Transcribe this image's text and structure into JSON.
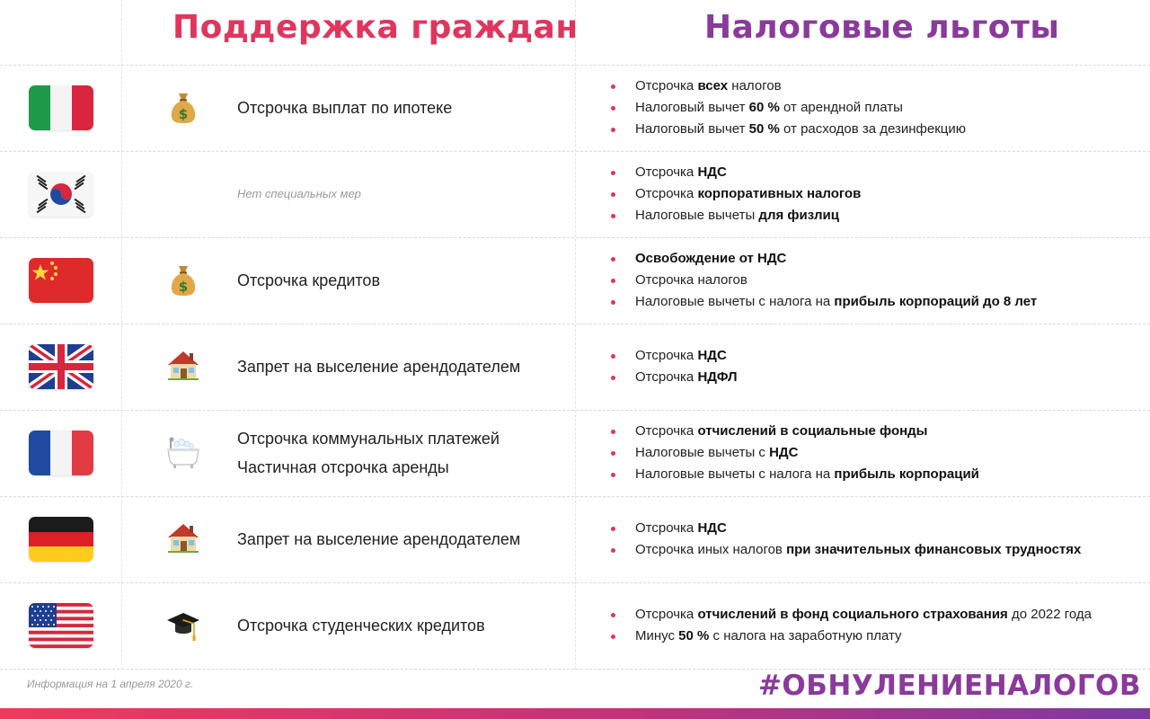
{
  "header": {
    "left_title": "Поддержка граждан",
    "right_title": "Налоговые льготы"
  },
  "rows": [
    {
      "country_flag": "italy-flag",
      "support_icon": "money-bag-icon",
      "support": [
        "Отсрочка выплат по ипотеке"
      ],
      "tax": [
        [
          {
            "t": "Отсрочка "
          },
          {
            "t": "всех",
            "b": true
          },
          {
            "t": " налогов"
          }
        ],
        [
          {
            "t": "Налоговый вычет "
          },
          {
            "t": "60 %",
            "b": true
          },
          {
            "t": " от арендной платы"
          }
        ],
        [
          {
            "t": "Налоговый вычет "
          },
          {
            "t": "50 %",
            "b": true
          },
          {
            "t": " от расходов за дезинфекцию"
          }
        ]
      ]
    },
    {
      "country_flag": "south-korea-flag",
      "support_icon": "",
      "support_muted": "Нет специальных мер",
      "support": [],
      "tax": [
        [
          {
            "t": "Отсрочка "
          },
          {
            "t": "НДС",
            "b": true
          }
        ],
        [
          {
            "t": "Отсрочка "
          },
          {
            "t": "корпоративных налогов",
            "b": true
          }
        ],
        [
          {
            "t": "Налоговые вычеты "
          },
          {
            "t": "для физлиц",
            "b": true
          }
        ]
      ]
    },
    {
      "country_flag": "china-flag",
      "support_icon": "money-bag-icon",
      "support": [
        "Отсрочка кредитов"
      ],
      "tax": [
        [
          {
            "t": "Освобождение от НДС",
            "b": true
          }
        ],
        [
          {
            "t": "Отсрочка налогов"
          }
        ],
        [
          {
            "t": "Налоговые вычеты с налога на "
          },
          {
            "t": "прибыль корпораций до 8 лет",
            "b": true
          }
        ]
      ]
    },
    {
      "country_flag": "united-kingdom-flag",
      "support_icon": "house-icon",
      "support": [
        "Запрет на выселение арендодателем"
      ],
      "tax": [
        [
          {
            "t": "Отсрочка "
          },
          {
            "t": "НДС",
            "b": true
          }
        ],
        [
          {
            "t": "Отсрочка "
          },
          {
            "t": "НДФЛ",
            "b": true
          }
        ]
      ]
    },
    {
      "country_flag": "france-flag",
      "support_icon": "bathtub-icon",
      "support": [
        "Отсрочка коммунальных платежей",
        "Частичная отсрочка аренды"
      ],
      "tax": [
        [
          {
            "t": "Отсрочка "
          },
          {
            "t": "отчислений в социальные фонды",
            "b": true
          }
        ],
        [
          {
            "t": "Налоговые вычеты с "
          },
          {
            "t": "НДС",
            "b": true
          }
        ],
        [
          {
            "t": "Налоговые вычеты с налога на "
          },
          {
            "t": "прибыль корпораций",
            "b": true
          }
        ]
      ]
    },
    {
      "country_flag": "germany-flag",
      "support_icon": "house-icon",
      "support": [
        "Запрет на выселение арендодателем"
      ],
      "tax": [
        [
          {
            "t": "Отсрочка "
          },
          {
            "t": "НДС",
            "b": true
          }
        ],
        [
          {
            "t": "Отсрочка иных налогов "
          },
          {
            "t": "при значительных финансовых трудностях",
            "b": true
          }
        ]
      ]
    },
    {
      "country_flag": "usa-flag",
      "support_icon": "graduation-cap-icon",
      "support": [
        "Отсрочка студенческих кредитов"
      ],
      "tax": [
        [
          {
            "t": "Отсрочка "
          },
          {
            "t": "отчислений в фонд социального страхования",
            "b": true
          },
          {
            "t": " до 2022 года"
          }
        ],
        [
          {
            "t": "Минус "
          },
          {
            "t": "50 %",
            "b": true
          },
          {
            "t": " с налога на заработную плату"
          }
        ]
      ]
    }
  ],
  "footer": {
    "note": "Информация на 1 апреля 2020 г.",
    "hashtag": "#ОБНУЛЕНИЕНАЛОГОВ"
  },
  "colors": {
    "accent_pink": "#e0355e",
    "accent_purple": "#8a3a9a"
  }
}
